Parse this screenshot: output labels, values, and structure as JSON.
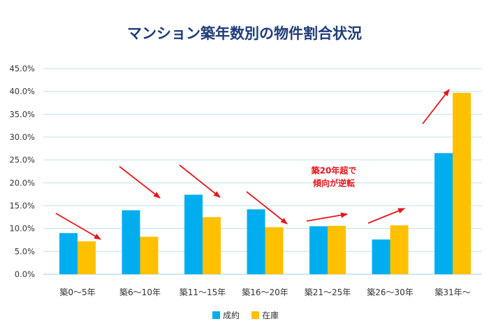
{
  "chart_data": {
    "type": "bar",
    "title": "マンション築年数別の物件割合状況",
    "categories": [
      "築0～5年",
      "築6～10年",
      "築11～15年",
      "築16～20年",
      "築21～25年",
      "築26～30年",
      "築31年～"
    ],
    "series": [
      {
        "name": "成約",
        "color": "#00aeef",
        "values": [
          9.0,
          14.0,
          17.4,
          14.2,
          10.5,
          7.6,
          26.5
        ]
      },
      {
        "name": "在庫",
        "color": "#ffc000",
        "values": [
          7.2,
          8.2,
          12.5,
          10.3,
          10.6,
          10.7,
          39.7
        ]
      }
    ],
    "ylim": [
      0,
      45
    ],
    "yticks": [
      "0.0%",
      "5.0%",
      "10.0%",
      "15.0%",
      "20.0%",
      "25.0%",
      "30.0%",
      "35.0%",
      "40.0%",
      "45.0%"
    ],
    "grid": true,
    "gridline_color": "#bfe3ee",
    "legend_position": "bottom-center",
    "annotation": {
      "lines": [
        "築20年超で",
        "傾向が逆転"
      ],
      "color": "#e8141b"
    },
    "trend_arrows": {
      "color": "#e8141b",
      "directions": [
        "down",
        "down",
        "down",
        "down",
        "up",
        "up",
        "up"
      ]
    }
  }
}
